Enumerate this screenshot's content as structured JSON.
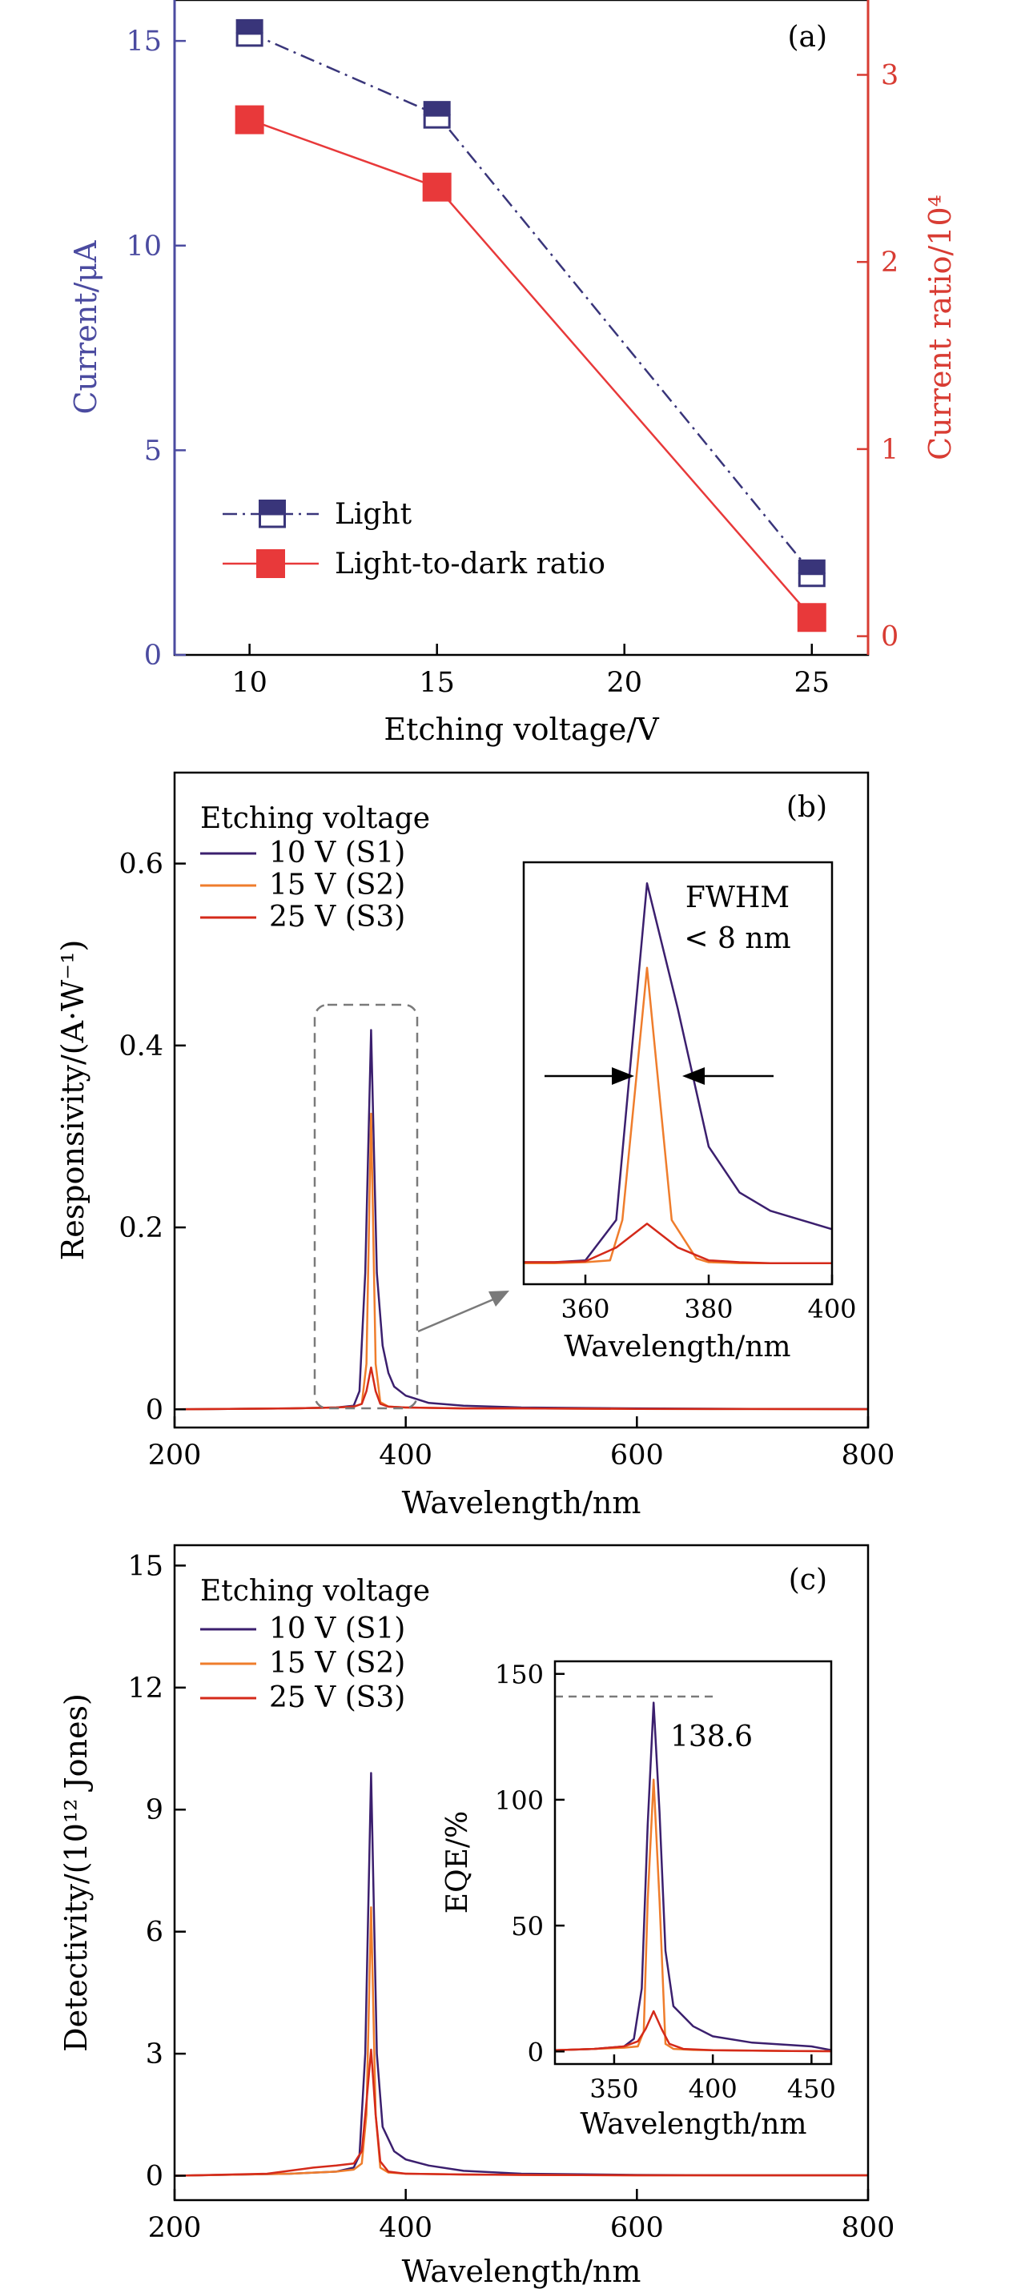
{
  "colors": {
    "s1": "#3b1f6e",
    "s2": "#ef7d2c",
    "s3": "#d42a1a",
    "light": "#39357a",
    "ratio": "#e8393a",
    "left_axis": "#4b4ba0",
    "right_axis": "#d83c33",
    "frame": "#000000",
    "dash_gray": "#7a7a7a"
  },
  "chart_data": [
    {
      "panel": "(a)",
      "type": "line",
      "xlabel": "Etching voltage/V",
      "ylabel_left": "Current/μA",
      "ylabel_right": "Current ratio/10⁴",
      "xlim": [
        8,
        26.5
      ],
      "xticks": [
        10,
        15,
        20,
        25
      ],
      "ylim_left": [
        0,
        16
      ],
      "yticks_left": [
        0,
        5,
        10,
        15
      ],
      "ylim_right": [
        -0.1,
        3.4
      ],
      "yticks_right": [
        0,
        1,
        2,
        3
      ],
      "legend_placement": "bottom-left",
      "series": [
        {
          "name": "Light",
          "axis": "left",
          "style": "dash-dot",
          "marker": "half-filled-square",
          "x": [
            10,
            15,
            25
          ],
          "y": [
            15.2,
            13.2,
            2.0
          ]
        },
        {
          "name": "Light-to-dark ratio",
          "axis": "right",
          "style": "solid",
          "marker": "filled-square",
          "x": [
            10,
            15,
            25
          ],
          "y": [
            2.76,
            2.4,
            0.1
          ]
        }
      ]
    },
    {
      "panel": "(b)",
      "type": "line",
      "xlabel": "Wavelength/nm",
      "ylabel": "Responsivity/(A·W⁻¹)",
      "xlim": [
        200,
        800
      ],
      "xticks": [
        200,
        400,
        600,
        800
      ],
      "ylim": [
        -0.02,
        0.7
      ],
      "yticks": [
        0,
        0.2,
        0.4,
        0.6
      ],
      "yticklabels": [
        "0",
        "0.2",
        "0.4",
        "0.6"
      ],
      "legend_title": "Etching voltage",
      "legend_placement": "top-left",
      "series": [
        {
          "name": "10 V (S1)",
          "x": [
            200,
            300,
            340,
            355,
            360,
            365,
            370,
            375,
            380,
            385,
            390,
            400,
            420,
            450,
            500,
            600,
            700,
            800
          ],
          "y": [
            0.0,
            0.001,
            0.002,
            0.004,
            0.02,
            0.15,
            0.417,
            0.15,
            0.07,
            0.04,
            0.025,
            0.015,
            0.007,
            0.004,
            0.002,
            0.001,
            0.0005,
            0.0003
          ]
        },
        {
          "name": "15 V (S2)",
          "x": [
            200,
            300,
            340,
            355,
            362,
            366,
            370,
            374,
            378,
            385,
            400,
            450,
            500,
            600,
            700,
            800
          ],
          "y": [
            0.0,
            0.001,
            0.002,
            0.003,
            0.006,
            0.05,
            0.325,
            0.05,
            0.008,
            0.003,
            0.002,
            0.001,
            0.001,
            0.0005,
            0.0003,
            0.0002
          ]
        },
        {
          "name": "25 V (S3)",
          "x": [
            200,
            300,
            340,
            355,
            362,
            366,
            370,
            374,
            378,
            385,
            400,
            450,
            500,
            600,
            700,
            800
          ],
          "y": [
            0.0,
            0.001,
            0.002,
            0.003,
            0.006,
            0.02,
            0.046,
            0.02,
            0.006,
            0.003,
            0.002,
            0.001,
            0.001,
            0.0005,
            0.0003,
            0.0002
          ]
        }
      ],
      "inset": {
        "xlabel": "Wavelength/nm",
        "xlim": [
          350,
          400
        ],
        "xticks": [
          360,
          380,
          400
        ],
        "annotation_line1": "FWHM",
        "annotation_line2": "< 8 nm",
        "series": [
          {
            "name": "10 V (S1)",
            "x": [
              350,
              355,
              360,
              365,
              370,
              375,
              380,
              385,
              390,
              395,
              400
            ],
            "y": [
              0.004,
              0.004,
              0.006,
              0.05,
              0.417,
              0.28,
              0.13,
              0.08,
              0.06,
              0.05,
              0.04
            ]
          },
          {
            "name": "15 V (S2)",
            "x": [
              350,
              355,
              360,
              364,
              366,
              370,
              374,
              378,
              380,
              385,
              390,
              395,
              400
            ],
            "y": [
              0.003,
              0.003,
              0.004,
              0.006,
              0.05,
              0.325,
              0.05,
              0.008,
              0.004,
              0.003,
              0.003,
              0.003,
              0.003
            ]
          },
          {
            "name": "25 V (S3)",
            "x": [
              350,
              355,
              360,
              365,
              370,
              375,
              380,
              385,
              390,
              395,
              400
            ],
            "y": [
              0.004,
              0.004,
              0.005,
              0.02,
              0.046,
              0.02,
              0.006,
              0.004,
              0.003,
              0.003,
              0.003
            ]
          }
        ]
      }
    },
    {
      "panel": "(c)",
      "type": "line",
      "xlabel": "Wavelength/nm",
      "ylabel": "Detectivity/(10¹² Jones)",
      "xlim": [
        200,
        800
      ],
      "xticks": [
        200,
        400,
        600,
        800
      ],
      "ylim": [
        -0.6,
        15.5
      ],
      "yticks": [
        0,
        3,
        6,
        9,
        12,
        15
      ],
      "legend_title": "Etching voltage",
      "legend_placement": "top-left",
      "series": [
        {
          "name": "10 V (S1)",
          "x": [
            200,
            300,
            340,
            355,
            360,
            365,
            370,
            375,
            380,
            390,
            400,
            420,
            450,
            500,
            600,
            700,
            800
          ],
          "y": [
            0.0,
            0.05,
            0.1,
            0.2,
            0.5,
            3.0,
            9.9,
            3.0,
            1.2,
            0.6,
            0.4,
            0.25,
            0.12,
            0.05,
            0.02,
            0.01,
            0.01
          ]
        },
        {
          "name": "15 V (S2)",
          "x": [
            200,
            300,
            340,
            355,
            362,
            366,
            370,
            374,
            378,
            385,
            400,
            450,
            500,
            600,
            700,
            800
          ],
          "y": [
            0.0,
            0.05,
            0.1,
            0.15,
            0.3,
            1.5,
            6.6,
            1.5,
            0.2,
            0.08,
            0.05,
            0.03,
            0.02,
            0.01,
            0.01,
            0.01
          ]
        },
        {
          "name": "25 V (S3)",
          "x": [
            200,
            280,
            320,
            340,
            355,
            362,
            366,
            370,
            374,
            378,
            385,
            400,
            450,
            500,
            600,
            700,
            800
          ],
          "y": [
            0.0,
            0.05,
            0.2,
            0.25,
            0.3,
            0.6,
            1.8,
            3.1,
            1.5,
            0.35,
            0.1,
            0.05,
            0.03,
            0.02,
            0.01,
            0.01,
            0.01
          ]
        }
      ],
      "inset": {
        "xlabel": "Wavelength/nm",
        "ylabel": "EQE/%",
        "xlim": [
          320,
          460
        ],
        "xticks": [
          350,
          400,
          450
        ],
        "ylim": [
          -5,
          155
        ],
        "yticks": [
          0,
          50,
          100,
          150
        ],
        "reference_line": 141,
        "peak_label": "138.6",
        "series": [
          {
            "name": "10 V (S1)",
            "x": [
              320,
              340,
              355,
              360,
              364,
              367,
              370,
              373,
              376,
              380,
              390,
              400,
              420,
              440,
              450,
              460
            ],
            "y": [
              0.5,
              1.0,
              2.0,
              5.0,
              25.0,
              90.0,
              138.6,
              95.0,
              40.0,
              18.0,
              10.0,
              6.0,
              3.5,
              2.5,
              2.0,
              0.5
            ]
          },
          {
            "name": "15 V (S2)",
            "x": [
              320,
              340,
              355,
              362,
              365,
              367,
              370,
              373,
              376,
              380,
              390,
              400,
              420,
              440,
              460
            ],
            "y": [
              0.5,
              1.0,
              1.5,
              2.0,
              8.0,
              60.0,
              108.0,
              60.0,
              3.0,
              1.0,
              0.6,
              0.5,
              0.3,
              0.2,
              0.1
            ]
          },
          {
            "name": "25 V (S3)",
            "x": [
              320,
              340,
              355,
              362,
              366,
              370,
              374,
              378,
              385,
              400,
              420,
              440,
              460
            ],
            "y": [
              0.5,
              1.0,
              2.0,
              4.0,
              9.0,
              16.0,
              9.0,
              3.0,
              1.0,
              0.5,
              0.3,
              0.2,
              0.1
            ]
          }
        ]
      }
    }
  ]
}
